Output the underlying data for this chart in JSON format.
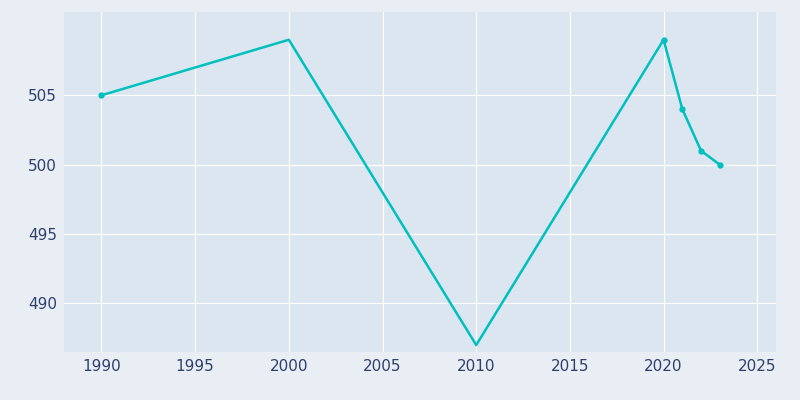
{
  "years": [
    1990,
    2000,
    2010,
    2020,
    2021,
    2022,
    2023
  ],
  "population": [
    505,
    509,
    487,
    509,
    504,
    501,
    500
  ],
  "line_color": "#00BFBF",
  "marker_color": "#00BFBF",
  "bg_color": "#E8EEF4",
  "plot_bg_color": "#DCE6F0",
  "grid_color": "#FFFFFF",
  "tick_color": "#2E3F6F",
  "xlim": [
    1988,
    2026
  ],
  "ylim": [
    486.5,
    511
  ],
  "xticks": [
    1990,
    1995,
    2000,
    2005,
    2010,
    2015,
    2020,
    2025
  ],
  "yticks": [
    490,
    495,
    500,
    505
  ],
  "line_width": 1.8,
  "marker_size": 3.5
}
